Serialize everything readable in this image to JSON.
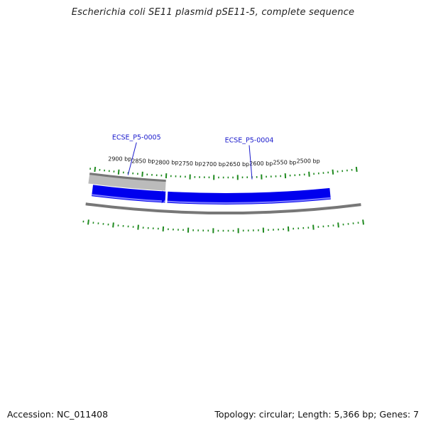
{
  "title": "Escherichia coli SE11 plasmid pSE11-5, complete sequence",
  "footer": {
    "accession": "Accession: NC_011408",
    "summary": "Topology: circular; Length: 5,366 bp; Genes: 7"
  },
  "colors": {
    "gene_forward": "#0000ee",
    "gene_forward_highlight": "#8080ff",
    "gene_reverse": "#bbbbbb",
    "backbone": "#777777",
    "ticks": "#1f8a1f",
    "gene_label": "#1a1acc",
    "leader_line": "#1a1acc"
  },
  "sequence_length_bp": 5366,
  "tick_labels": [
    {
      "bp": 2900,
      "text": "2900 bp"
    },
    {
      "bp": 2850,
      "text": "2850 bp"
    },
    {
      "bp": 2800,
      "text": "2800 bp"
    },
    {
      "bp": 2750,
      "text": "2750 bp"
    },
    {
      "bp": 2700,
      "text": "2700 bp"
    },
    {
      "bp": 2650,
      "text": "2650 bp"
    },
    {
      "bp": 2600,
      "text": "2600 bp"
    },
    {
      "bp": 2550,
      "text": "2550 bp"
    },
    {
      "bp": 2500,
      "text": "2500 bp"
    }
  ],
  "genes": [
    {
      "name": "ECSE_P5-0005",
      "strand": "reverse",
      "start_bp": 2800,
      "end_bp": 2950
    },
    {
      "name": "ECSE_P5-0004",
      "strand": "forward",
      "start_bp": 2460,
      "end_bp": 2800
    }
  ],
  "gene_labels": [
    {
      "text": "ECSE_P5-0005",
      "target_bp": 2880
    },
    {
      "text": "ECSE_P5-0004",
      "target_bp": 2620
    }
  ]
}
